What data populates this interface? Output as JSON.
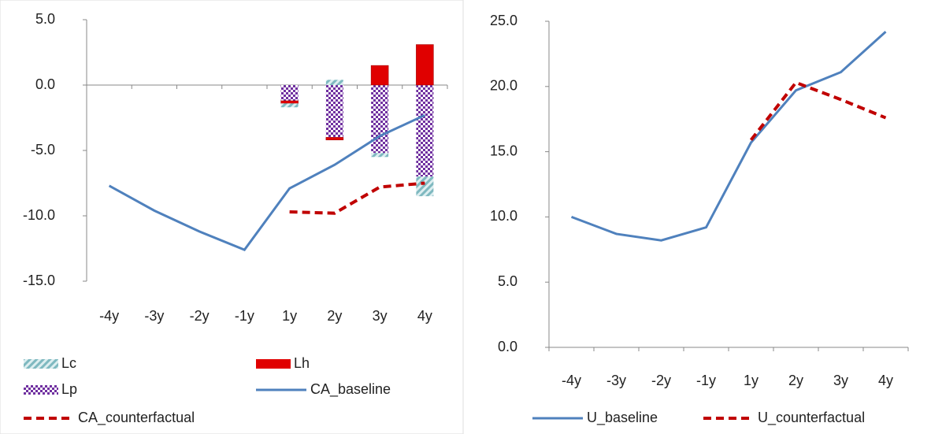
{
  "chart_data": [
    {
      "type": "bar",
      "categories": [
        "-4y",
        "-3y",
        "-2y",
        "-1y",
        "1y",
        "2y",
        "3y",
        "4y"
      ],
      "series": [
        {
          "name": "Lc",
          "type": "bar",
          "color": "#9fd3d8",
          "pattern": "hatch",
          "values": [
            null,
            null,
            null,
            null,
            -0.3,
            0.4,
            -0.3,
            -1.5
          ]
        },
        {
          "name": "Lh",
          "type": "bar",
          "color": "#e00000",
          "pattern": "solid",
          "values": [
            null,
            null,
            null,
            null,
            -0.2,
            -0.2,
            1.5,
            3.1
          ]
        },
        {
          "name": "Lp",
          "type": "bar",
          "color": "#7030a0",
          "pattern": "checker",
          "values": [
            null,
            null,
            null,
            null,
            -1.2,
            -4.0,
            -5.2,
            -7.0
          ]
        },
        {
          "name": "CA_baseline",
          "type": "line",
          "color": "#4f81bd",
          "style": "solid",
          "values": [
            -7.7,
            -9.6,
            -11.2,
            -12.6,
            -7.9,
            -6.1,
            -3.9,
            -2.3
          ]
        },
        {
          "name": "CA_counterfactual",
          "type": "line",
          "color": "#c00000",
          "style": "dashed",
          "values": [
            null,
            null,
            null,
            null,
            -9.7,
            -9.8,
            -7.8,
            -7.5
          ]
        }
      ],
      "ylim": [
        -15,
        5
      ],
      "yticks": [
        {
          "value": -15,
          "label": "-15.0"
        },
        {
          "value": -10,
          "label": "-10.0"
        },
        {
          "value": -5,
          "label": "-5.0"
        },
        {
          "value": 0,
          "label": "0.0"
        },
        {
          "value": 5,
          "label": "5.0"
        }
      ],
      "legend": "bottom"
    },
    {
      "type": "line",
      "categories": [
        "-4y",
        "-3y",
        "-2y",
        "-1y",
        "1y",
        "2y",
        "3y",
        "4y"
      ],
      "series": [
        {
          "name": "U_baseline",
          "type": "line",
          "color": "#4f81bd",
          "style": "solid",
          "values": [
            10.0,
            8.7,
            8.2,
            9.2,
            15.7,
            19.7,
            21.1,
            24.2
          ]
        },
        {
          "name": "U_counterfactual",
          "type": "line",
          "color": "#c00000",
          "style": "dashed",
          "values": [
            null,
            null,
            null,
            null,
            15.9,
            20.3,
            19.0,
            17.6
          ]
        }
      ],
      "ylim": [
        0,
        25
      ],
      "yticks": [
        {
          "value": 0,
          "label": "0.0"
        },
        {
          "value": 5,
          "label": "5.0"
        },
        {
          "value": 10,
          "label": "10.0"
        },
        {
          "value": 15,
          "label": "15.0"
        },
        {
          "value": 20,
          "label": "20.0"
        },
        {
          "value": 25,
          "label": "25.0"
        }
      ],
      "legend": "bottom"
    }
  ]
}
